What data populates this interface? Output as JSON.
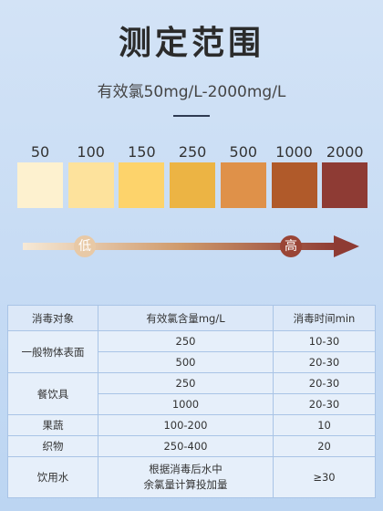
{
  "title": "测定范围",
  "subtitle": "有效氯50mg/L-2000mg/L",
  "swatches": [
    {
      "label": "50",
      "color": "#fdf1cf"
    },
    {
      "label": "100",
      "color": "#fde29c"
    },
    {
      "label": "150",
      "color": "#fdd36b"
    },
    {
      "label": "250",
      "color": "#ecb444"
    },
    {
      "label": "500",
      "color": "#df9149"
    },
    {
      "label": "1000",
      "color": "#b05a2a"
    },
    {
      "label": "2000",
      "color": "#8e3b34"
    }
  ],
  "scale": {
    "low": "低",
    "high": "高"
  },
  "table": {
    "header": [
      "消毒对象",
      "有效氯含量mg/L",
      "消毒时间min"
    ],
    "groups": [
      {
        "object": "一般物体表面",
        "entries": [
          [
            "250",
            "10-30"
          ],
          [
            "500",
            "20-30"
          ]
        ]
      },
      {
        "object": "餐饮具",
        "entries": [
          [
            "250",
            "20-30"
          ],
          [
            "1000",
            "20-30"
          ]
        ]
      },
      {
        "object": "果蔬",
        "entries": [
          [
            "100-200",
            "10"
          ]
        ]
      },
      {
        "object": "织物",
        "entries": [
          [
            "250-400",
            "20"
          ]
        ]
      },
      {
        "object": "饮用水",
        "entries": [
          [
            [
              "根据消毒后水中",
              "余氯量计算投加量"
            ],
            "≥30"
          ]
        ]
      }
    ]
  }
}
